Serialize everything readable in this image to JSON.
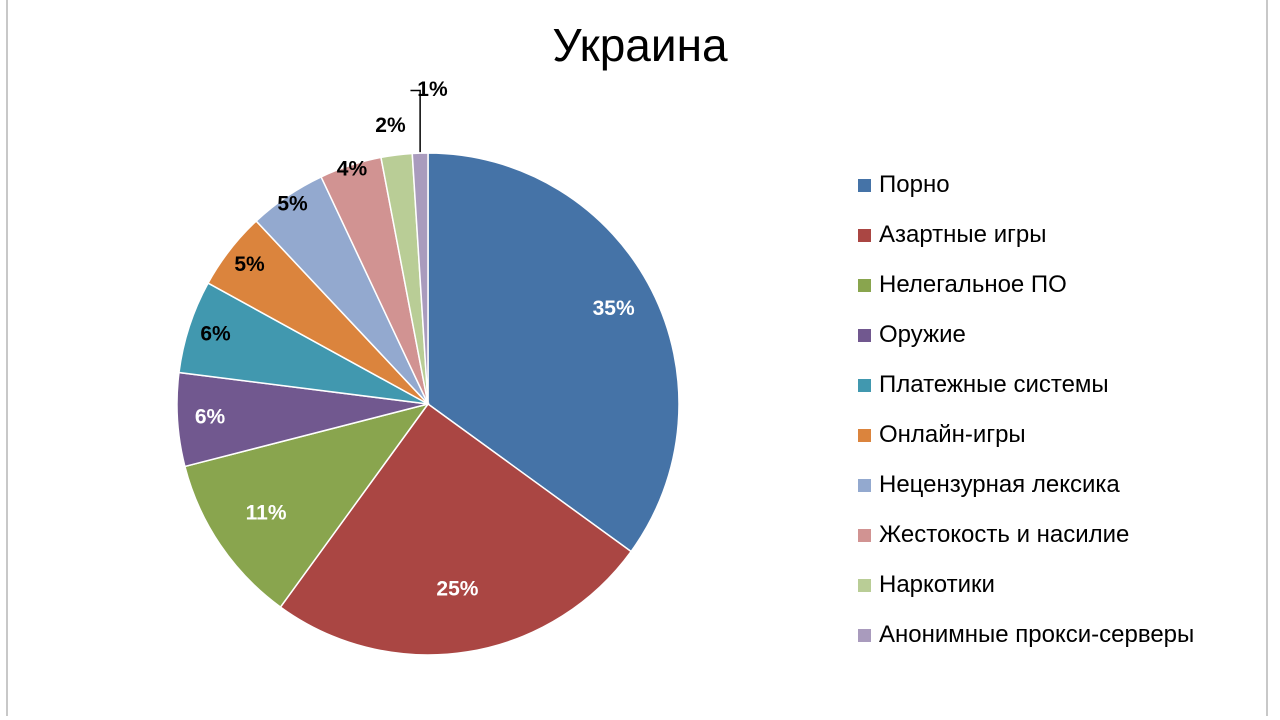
{
  "chart_data": {
    "type": "pie",
    "title": "Украина",
    "categories": [
      "Порно",
      "Азартные игры",
      "Нелегальное ПО",
      "Оружие",
      "Платежные системы",
      "Онлайн-игры",
      "Нецензурная лексика",
      "Жестокость и насилие",
      "Наркотики",
      "Анонимные прокси-серверы"
    ],
    "values": [
      35,
      25,
      11,
      6,
      6,
      5,
      5,
      4,
      2,
      1
    ],
    "labels": [
      "35%",
      "25%",
      "11%",
      "6%",
      "6%",
      "5%",
      "5%",
      "4%",
      "2%",
      "1%"
    ],
    "colors": [
      "#4573a7",
      "#aa4643",
      "#89a54e",
      "#71588f",
      "#4198af",
      "#db843d",
      "#93a9cf",
      "#d19392",
      "#b9cd96",
      "#a99bbd"
    ],
    "label_colors": [
      "#ffffff",
      "#ffffff",
      "#ffffff",
      "#ffffff",
      "#000000",
      "#000000",
      "#000000",
      "#000000",
      "#000000",
      "#000000"
    ],
    "legend_position": "right"
  }
}
